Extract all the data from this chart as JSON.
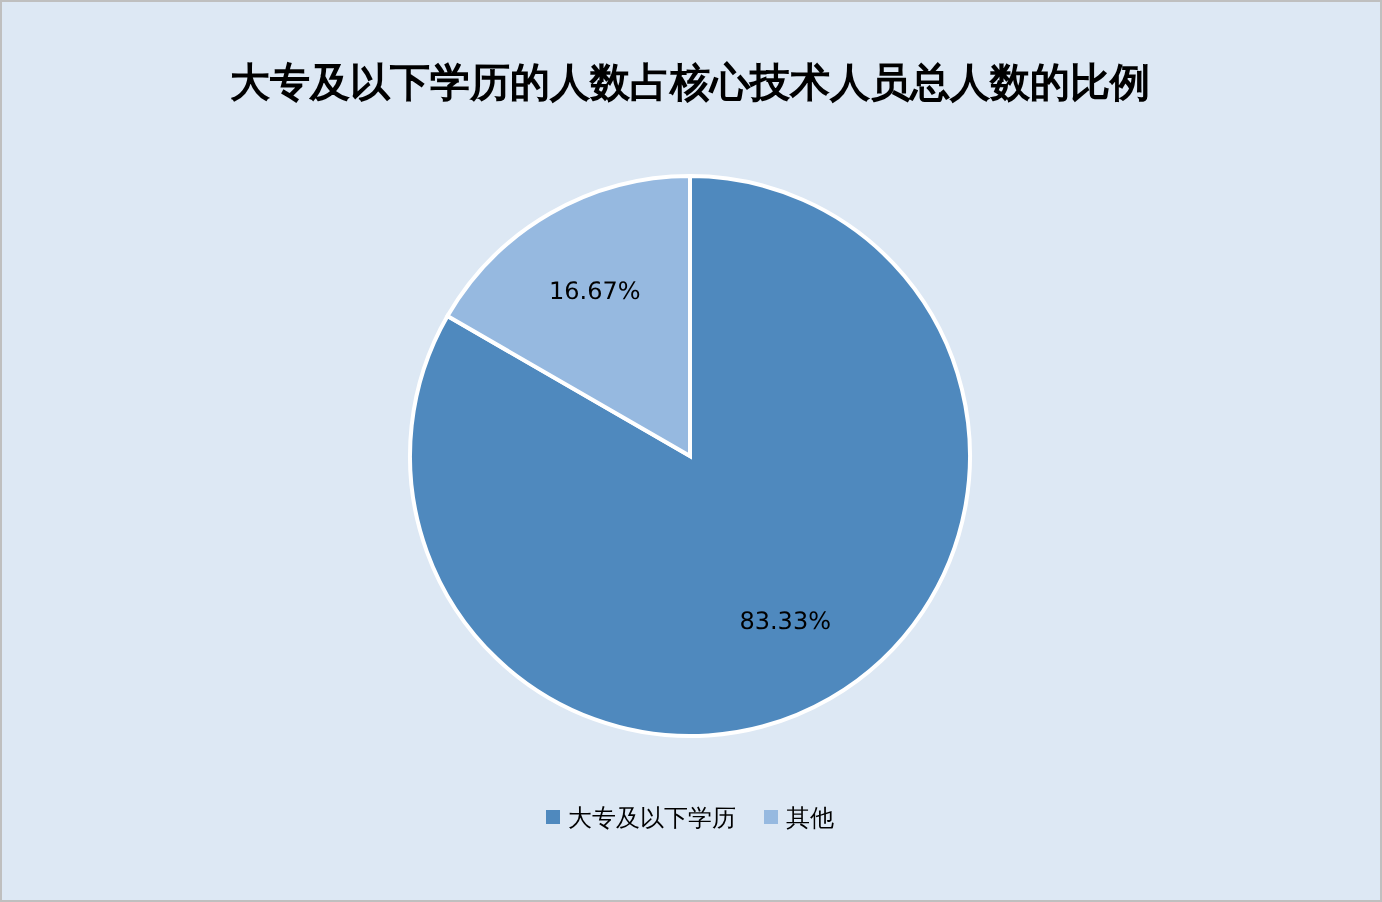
{
  "chart_data": {
    "type": "pie",
    "title": "大专及以下学历的人数占核心技术人员总人数的比例",
    "categories": [
      "大专及以下学历",
      "其他"
    ],
    "values": [
      83.33,
      16.67
    ],
    "colors": [
      "#4f89be",
      "#96b9e0"
    ],
    "value_labels": [
      "83.33%",
      "16.67%"
    ],
    "legend": "bottom"
  }
}
